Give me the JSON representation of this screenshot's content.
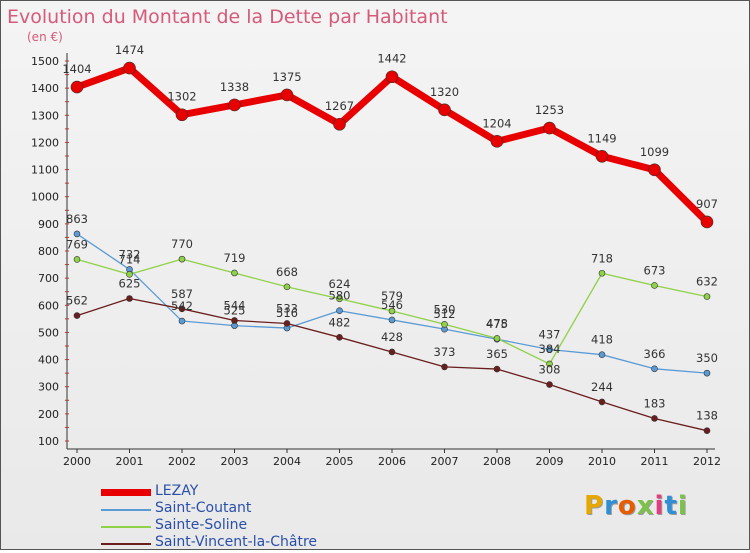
{
  "title": "Evolution du Montant de la Dette par Habitant",
  "unit_label": "(en €)",
  "logo_text": "Proxiti",
  "logo_colors": [
    "#e6a800",
    "#2e8fd6",
    "#e65c00",
    "#7cc24a",
    "#e23d7e",
    "#2e8fd6",
    "#7cc24a"
  ],
  "chart_data": {
    "type": "line",
    "x": [
      "2000",
      "2001",
      "2002",
      "2003",
      "2004",
      "2005",
      "2006",
      "2007",
      "2008",
      "2009",
      "2010",
      "2011",
      "2012"
    ],
    "ylim": [
      100,
      1500
    ],
    "yticks": [
      100,
      200,
      300,
      400,
      500,
      600,
      700,
      800,
      900,
      1000,
      1100,
      1200,
      1300,
      1400,
      1500
    ],
    "grid": false,
    "legend": "bottom-left",
    "series": [
      {
        "name": "LEZAY",
        "color": "#e80000",
        "line_width": 7,
        "marker_r": 6,
        "values": [
          1404,
          1474,
          1302,
          1338,
          1375,
          1267,
          1442,
          1320,
          1204,
          1253,
          1149,
          1099,
          907
        ]
      },
      {
        "name": "Saint-Coutant",
        "color": "#5b9bd5",
        "line_width": 1.3,
        "marker_r": 3,
        "values": [
          863,
          732,
          542,
          525,
          516,
          580,
          546,
          512,
          475,
          437,
          418,
          366,
          350
        ]
      },
      {
        "name": "Sainte-Soline",
        "color": "#8fd147",
        "line_width": 1.3,
        "marker_r": 3,
        "values": [
          769,
          714,
          770,
          719,
          668,
          624,
          579,
          530,
          478,
          384,
          718,
          673,
          632
        ]
      },
      {
        "name": "Saint-Vincent-la-Châtre",
        "color": "#6b1e1e",
        "line_width": 1.3,
        "marker_r": 3,
        "values": [
          562,
          625,
          587,
          544,
          533,
          482,
          428,
          373,
          365,
          308,
          244,
          183,
          138
        ]
      }
    ]
  }
}
